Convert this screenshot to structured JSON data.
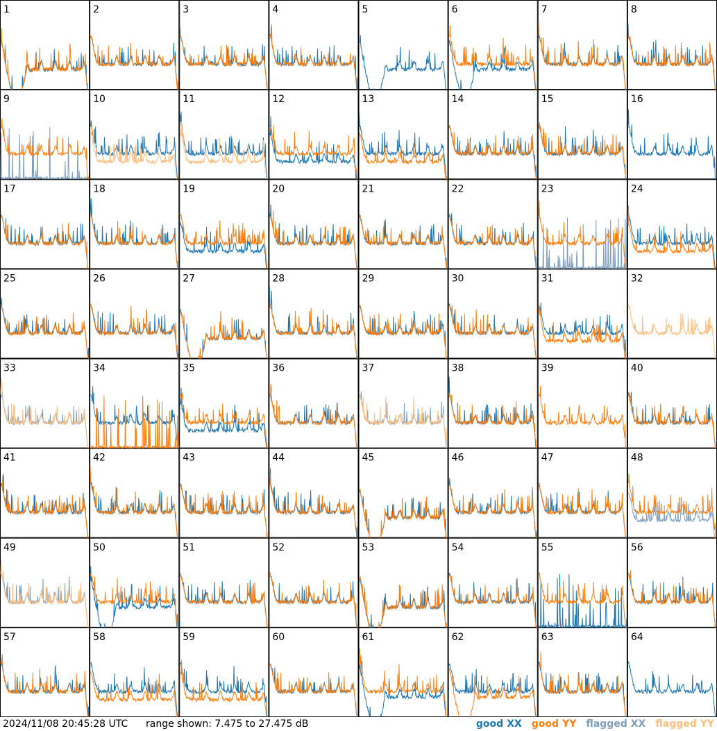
{
  "chart_data": {
    "type": "line",
    "panels": [
      {
        "id": "1",
        "xx": "good",
        "yy": "good",
        "xxShape": "dip",
        "yyShape": "dip"
      },
      {
        "id": "2",
        "xx": "good",
        "yy": "good",
        "xxShape": "normal",
        "yyShape": "normal"
      },
      {
        "id": "3",
        "xx": "good",
        "yy": "good",
        "xxShape": "normal",
        "yyShape": "normal"
      },
      {
        "id": "4",
        "xx": "good",
        "yy": "good",
        "xxShape": "normal",
        "yyShape": "normal"
      },
      {
        "id": "5",
        "xx": "good",
        "yy": "good",
        "xxShape": "dip",
        "yyShape": "dead"
      },
      {
        "id": "6",
        "xx": "good",
        "yy": "good",
        "xxShape": "dip",
        "yyShape": "normal"
      },
      {
        "id": "7",
        "xx": "good",
        "yy": "good",
        "xxShape": "normal",
        "yyShape": "normal"
      },
      {
        "id": "8",
        "xx": "good",
        "yy": "good",
        "xxShape": "normal",
        "yyShape": "normal"
      },
      {
        "id": "9",
        "xx": "flagged",
        "yy": "good",
        "xxShape": "spikes",
        "yyShape": "normal"
      },
      {
        "id": "10",
        "xx": "good",
        "yy": "flagged",
        "xxShape": "normal",
        "yyShape": "low"
      },
      {
        "id": "11",
        "xx": "good",
        "yy": "flagged",
        "xxShape": "normal",
        "yyShape": "low"
      },
      {
        "id": "12",
        "xx": "good",
        "yy": "good",
        "xxShape": "low",
        "yyShape": "normal"
      },
      {
        "id": "13",
        "xx": "good",
        "yy": "good",
        "xxShape": "normal",
        "yyShape": "low"
      },
      {
        "id": "14",
        "xx": "good",
        "yy": "good",
        "xxShape": "normal",
        "yyShape": "normal"
      },
      {
        "id": "15",
        "xx": "good",
        "yy": "good",
        "xxShape": "normal",
        "yyShape": "normal"
      },
      {
        "id": "16",
        "xx": "good",
        "yy": "flagged",
        "xxShape": "normal",
        "yyShape": "dead"
      },
      {
        "id": "17",
        "xx": "good",
        "yy": "good",
        "xxShape": "normal",
        "yyShape": "normal"
      },
      {
        "id": "18",
        "xx": "good",
        "yy": "good",
        "xxShape": "normal",
        "yyShape": "normal"
      },
      {
        "id": "19",
        "xx": "good",
        "yy": "good",
        "xxShape": "low",
        "yyShape": "normal"
      },
      {
        "id": "20",
        "xx": "good",
        "yy": "good",
        "xxShape": "normal",
        "yyShape": "normal"
      },
      {
        "id": "21",
        "xx": "good",
        "yy": "good",
        "xxShape": "normal",
        "yyShape": "normal"
      },
      {
        "id": "22",
        "xx": "good",
        "yy": "good",
        "xxShape": "normal",
        "yyShape": "normal"
      },
      {
        "id": "23",
        "xx": "flagged",
        "yy": "good",
        "xxShape": "spikes",
        "yyShape": "normal"
      },
      {
        "id": "24",
        "xx": "good",
        "yy": "good",
        "xxShape": "normal",
        "yyShape": "low"
      },
      {
        "id": "25",
        "xx": "good",
        "yy": "good",
        "xxShape": "normal",
        "yyShape": "normal"
      },
      {
        "id": "26",
        "xx": "good",
        "yy": "good",
        "xxShape": "normal",
        "yyShape": "normal"
      },
      {
        "id": "27",
        "xx": "good",
        "yy": "good",
        "xxShape": "dip",
        "yyShape": "dip"
      },
      {
        "id": "28",
        "xx": "good",
        "yy": "good",
        "xxShape": "normal",
        "yyShape": "normal"
      },
      {
        "id": "29",
        "xx": "good",
        "yy": "good",
        "xxShape": "normal",
        "yyShape": "normal"
      },
      {
        "id": "30",
        "xx": "good",
        "yy": "good",
        "xxShape": "normal",
        "yyShape": "normal"
      },
      {
        "id": "31",
        "xx": "good",
        "yy": "good",
        "xxShape": "normal",
        "yyShape": "low"
      },
      {
        "id": "32",
        "xx": "flagged",
        "yy": "flagged",
        "xxShape": "dead",
        "yyShape": "normal"
      },
      {
        "id": "33",
        "xx": "flagged",
        "yy": "flagged",
        "xxShape": "normal",
        "yyShape": "normal"
      },
      {
        "id": "34",
        "xx": "good",
        "yy": "good",
        "xxShape": "normal",
        "yyShape": "spikes"
      },
      {
        "id": "35",
        "xx": "good",
        "yy": "good",
        "xxShape": "low",
        "yyShape": "normal"
      },
      {
        "id": "36",
        "xx": "good",
        "yy": "good",
        "xxShape": "normal",
        "yyShape": "normal"
      },
      {
        "id": "37",
        "xx": "flagged",
        "yy": "flagged",
        "xxShape": "normal",
        "yyShape": "normal"
      },
      {
        "id": "38",
        "xx": "good",
        "yy": "good",
        "xxShape": "normal",
        "yyShape": "normal"
      },
      {
        "id": "39",
        "xx": "good",
        "yy": "good",
        "xxShape": "dead",
        "yyShape": "normal"
      },
      {
        "id": "40",
        "xx": "good",
        "yy": "good",
        "xxShape": "normal",
        "yyShape": "normal"
      },
      {
        "id": "41",
        "xx": "good",
        "yy": "good",
        "xxShape": "normal",
        "yyShape": "normal"
      },
      {
        "id": "42",
        "xx": "good",
        "yy": "good",
        "xxShape": "normal",
        "yyShape": "normal"
      },
      {
        "id": "43",
        "xx": "good",
        "yy": "good",
        "xxShape": "normal",
        "yyShape": "normal"
      },
      {
        "id": "44",
        "xx": "good",
        "yy": "good",
        "xxShape": "normal",
        "yyShape": "normal"
      },
      {
        "id": "45",
        "xx": "good",
        "yy": "good",
        "xxShape": "dip",
        "yyShape": "dip"
      },
      {
        "id": "46",
        "xx": "good",
        "yy": "good",
        "xxShape": "normal",
        "yyShape": "normal"
      },
      {
        "id": "47",
        "xx": "good",
        "yy": "good",
        "xxShape": "normal",
        "yyShape": "normal"
      },
      {
        "id": "48",
        "xx": "flagged",
        "yy": "good",
        "xxShape": "low",
        "yyShape": "normal"
      },
      {
        "id": "49",
        "xx": "flagged",
        "yy": "flagged",
        "xxShape": "normal",
        "yyShape": "normal"
      },
      {
        "id": "50",
        "xx": "good",
        "yy": "good",
        "xxShape": "dip",
        "yyShape": "normal"
      },
      {
        "id": "51",
        "xx": "good",
        "yy": "good",
        "xxShape": "normal",
        "yyShape": "normal"
      },
      {
        "id": "52",
        "xx": "good",
        "yy": "good",
        "xxShape": "normal",
        "yyShape": "normal"
      },
      {
        "id": "53",
        "xx": "good",
        "yy": "good",
        "xxShape": "dip",
        "yyShape": "dip"
      },
      {
        "id": "54",
        "xx": "good",
        "yy": "good",
        "xxShape": "normal",
        "yyShape": "normal"
      },
      {
        "id": "55",
        "xx": "good",
        "yy": "good",
        "xxShape": "spikes",
        "yyShape": "normal"
      },
      {
        "id": "56",
        "xx": "good",
        "yy": "good",
        "xxShape": "normal",
        "yyShape": "normal"
      },
      {
        "id": "57",
        "xx": "good",
        "yy": "good",
        "xxShape": "normal",
        "yyShape": "normal"
      },
      {
        "id": "58",
        "xx": "good",
        "yy": "good",
        "xxShape": "normal",
        "yyShape": "low"
      },
      {
        "id": "59",
        "xx": "good",
        "yy": "good",
        "xxShape": "normal",
        "yyShape": "low"
      },
      {
        "id": "60",
        "xx": "good",
        "yy": "good",
        "xxShape": "normal",
        "yyShape": "normal"
      },
      {
        "id": "61",
        "xx": "good",
        "yy": "good",
        "xxShape": "dip",
        "yyShape": "normal"
      },
      {
        "id": "62",
        "xx": "good",
        "yy": "good",
        "xxShape": "normal",
        "yyShape": "dip"
      },
      {
        "id": "63",
        "xx": "good",
        "yy": "good",
        "xxShape": "normal",
        "yyShape": "normal"
      },
      {
        "id": "64",
        "xx": "good",
        "yy": "flagged",
        "xxShape": "normal",
        "yyShape": "dead"
      }
    ],
    "ylim": [
      7.475,
      27.475
    ],
    "grid": false,
    "legend_position": "bottom-right"
  },
  "colors": {
    "good_xx": "#1f77b4",
    "good_yy": "#ff7f0e",
    "flagged_xx": "#7f9fbf",
    "flagged_yy": "#ffbf80"
  },
  "footer": {
    "timestamp": "2024/11/08 20:45:28 UTC",
    "range": "range shown: 7.475 to 27.475 dB",
    "legend": [
      {
        "word": "good",
        "pol": "XX",
        "color": "#1f77b4"
      },
      {
        "word": "good",
        "pol": "YY",
        "color": "#ff7f0e"
      },
      {
        "word": "flagged",
        "pol": "XX",
        "color": "#7f9fbf"
      },
      {
        "word": "flagged",
        "pol": "YY",
        "color": "#ffbf80"
      }
    ]
  }
}
